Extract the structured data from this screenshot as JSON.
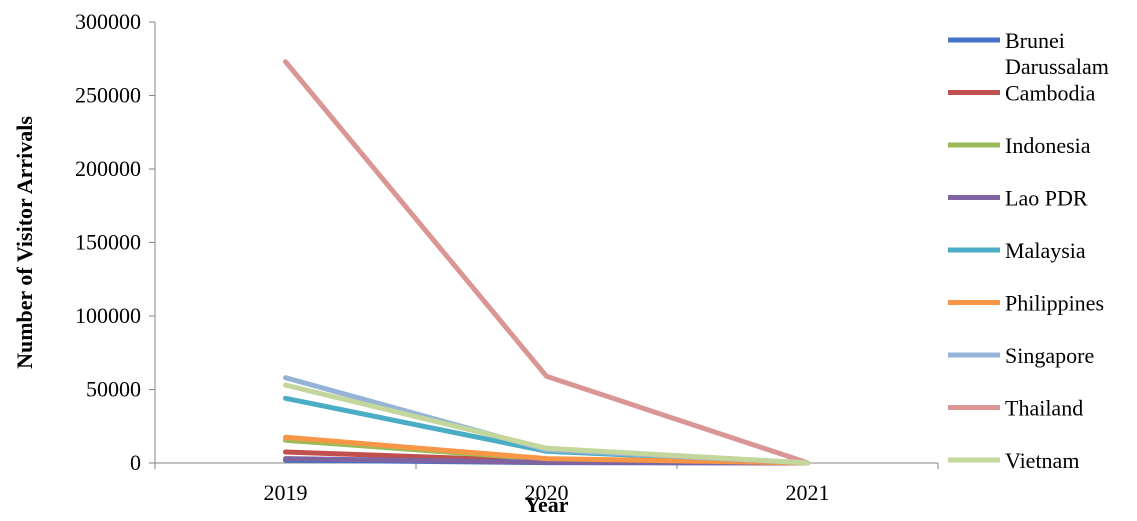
{
  "chart_data": {
    "type": "line",
    "title": "",
    "xlabel": "Year",
    "ylabel": "Number of Visitor Arrivals",
    "categories": [
      "2019",
      "2020",
      "2021"
    ],
    "ylim": [
      0,
      300000
    ],
    "yticks": [
      0,
      50000,
      100000,
      150000,
      200000,
      250000,
      300000
    ],
    "grid": false,
    "legend_position": "right",
    "series": [
      {
        "name": "Brunei Darussalam",
        "color": "#4472c4",
        "values": [
          2000,
          300,
          0
        ]
      },
      {
        "name": "Cambodia",
        "color": "#c0504d",
        "values": [
          7500,
          1200,
          0
        ]
      },
      {
        "name": "Indonesia",
        "color": "#9bbb59",
        "values": [
          15500,
          2500,
          0
        ]
      },
      {
        "name": "Lao PDR",
        "color": "#8064a2",
        "values": [
          3000,
          500,
          0
        ]
      },
      {
        "name": "Malaysia",
        "color": "#4bacc6",
        "values": [
          44000,
          8000,
          100
        ]
      },
      {
        "name": "Philippines",
        "color": "#f79646",
        "values": [
          17500,
          3000,
          0
        ]
      },
      {
        "name": "Singapore",
        "color": "#95b3d7",
        "values": [
          58000,
          9000,
          100
        ]
      },
      {
        "name": "Thailand",
        "color": "#d99694",
        "values": [
          273000,
          59000,
          200
        ]
      },
      {
        "name": "Vietnam",
        "color": "#c3d69b",
        "values": [
          53000,
          10000,
          100
        ]
      }
    ]
  }
}
